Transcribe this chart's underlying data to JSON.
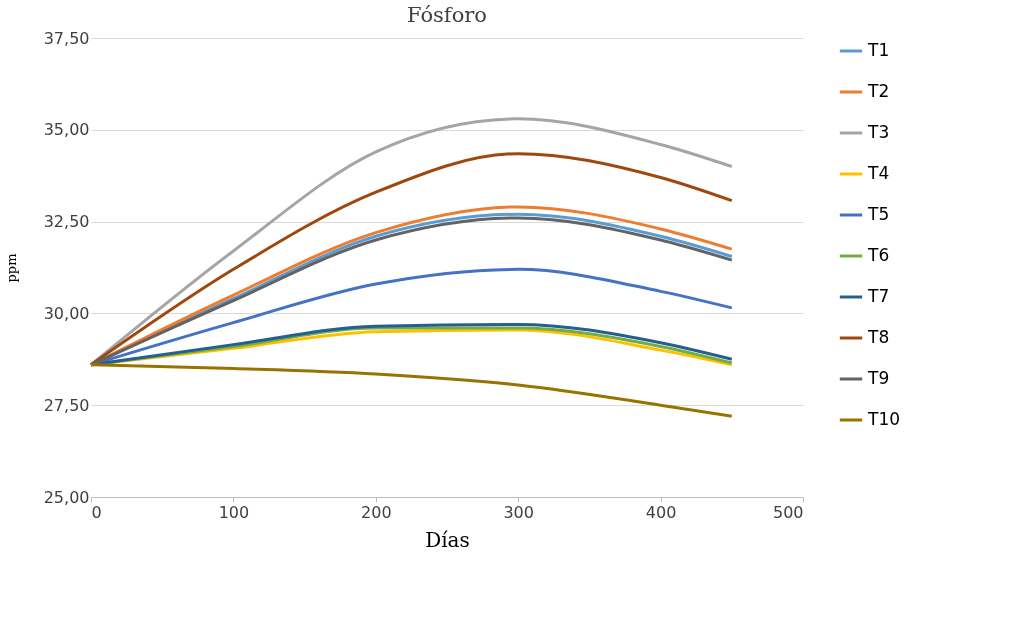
{
  "chart_data": {
    "type": "line",
    "title": "Fósforo",
    "xlabel": "Días",
    "ylabel": "ppm",
    "x": [
      0,
      100,
      200,
      300,
      400,
      450
    ],
    "xlim": [
      0,
      500
    ],
    "xticks": [
      0,
      100,
      200,
      300,
      400,
      500
    ],
    "ylim": [
      25,
      37.5
    ],
    "yticks": [
      {
        "value": 25,
        "label": "25,00"
      },
      {
        "value": 27.5,
        "label": "27,50"
      },
      {
        "value": 30,
        "label": "30,00"
      },
      {
        "value": 32.5,
        "label": "32,50"
      },
      {
        "value": 35,
        "label": "35,00"
      },
      {
        "value": 37.5,
        "label": "37,50"
      }
    ],
    "grid": "y",
    "legend": "right",
    "marker": "none",
    "line_style": "solid",
    "series": [
      {
        "name": "T1",
        "color": "#5b9bd5",
        "values": [
          28.6,
          30.4,
          32.1,
          32.7,
          32.1,
          31.55
        ]
      },
      {
        "name": "T2",
        "color": "#ed7d31",
        "values": [
          28.6,
          30.5,
          32.2,
          32.9,
          32.3,
          31.75
        ]
      },
      {
        "name": "T3",
        "color": "#a5a5a5",
        "values": [
          28.6,
          31.7,
          34.4,
          35.3,
          34.6,
          34.0
        ]
      },
      {
        "name": "T4",
        "color": "#ffc000",
        "values": [
          28.6,
          29.05,
          29.5,
          29.55,
          29.0,
          28.6
        ]
      },
      {
        "name": "T5",
        "color": "#4472c4",
        "values": [
          28.6,
          29.75,
          30.8,
          31.2,
          30.6,
          30.15
        ]
      },
      {
        "name": "T6",
        "color": "#70ad47",
        "values": [
          28.6,
          29.1,
          29.6,
          29.6,
          29.1,
          28.65
        ]
      },
      {
        "name": "T7",
        "color": "#255e91",
        "values": [
          28.6,
          29.15,
          29.65,
          29.7,
          29.2,
          28.75
        ]
      },
      {
        "name": "T8",
        "color": "#9e480e",
        "values": [
          28.6,
          31.2,
          33.3,
          34.35,
          33.7,
          33.07
        ]
      },
      {
        "name": "T9",
        "color": "#636363",
        "values": [
          28.6,
          30.35,
          32.0,
          32.6,
          32.0,
          31.45
        ]
      },
      {
        "name": "T10",
        "color": "#997300",
        "values": [
          28.6,
          28.5,
          28.35,
          28.05,
          27.5,
          27.2
        ]
      }
    ]
  }
}
